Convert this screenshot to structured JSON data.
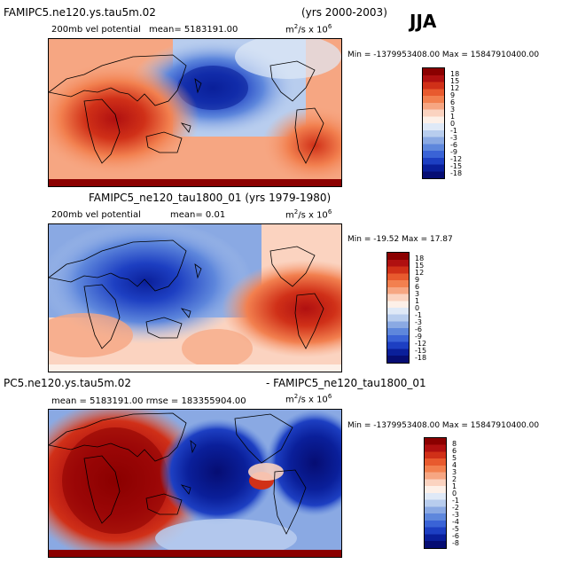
{
  "season": "JJA",
  "panels": [
    {
      "case_title": "FAMIPC5.ne120.ys.tau5m.02",
      "years": "(yrs 2000-2003)",
      "variable": "200mb vel potential",
      "mean_text": "mean=  5183191.00",
      "units_base": "m",
      "units_sup1": "2",
      "units_mid": "/s x 10",
      "units_sup2": "6",
      "minmax": "Min = -1379953408.00 Max = 15847910400.00",
      "levels": [
        "18",
        "15",
        "12",
        "9",
        "6",
        "3",
        "1",
        "0",
        "-1",
        "-3",
        "-6",
        "-9",
        "-12",
        "-15",
        "-18"
      ]
    },
    {
      "case_title": "FAMIPC5_ne120_tau1800_01 (yrs 1979-1980)",
      "variable": "200mb vel potential",
      "mean_text": "mean=   0.01",
      "units_base": "m",
      "units_sup1": "2",
      "units_mid": "/s x 10",
      "units_sup2": "6",
      "minmax": "Min = -19.52 Max =  17.87",
      "levels": [
        "18",
        "15",
        "12",
        "9",
        "6",
        "3",
        "1",
        "0",
        "-1",
        "-3",
        "-6",
        "-9",
        "-12",
        "-15",
        "-18"
      ]
    },
    {
      "case_title_left": "PC5.ne120.ys.tau5m.02",
      "case_title_right": "- FAMIPC5_ne120_tau1800_01",
      "mean_text": "mean =  5183191.00 rmse =  183355904.00",
      "units_base": "m",
      "units_sup1": "2",
      "units_mid": "/s x 10",
      "units_sup2": "6",
      "minmax": "Min = -1379953408.00 Max = 15847910400.00",
      "levels": [
        "8",
        "6",
        "5",
        "4",
        "3",
        "2",
        "1",
        "0",
        "-1",
        "-2",
        "-3",
        "-4",
        "-5",
        "-6",
        "-8"
      ]
    }
  ],
  "colors": {
    "scale": [
      "#8b0000",
      "#b01010",
      "#d03018",
      "#e85a2e",
      "#f2804f",
      "#f6a682",
      "#fbd3c0",
      "#fdf0e8",
      "#dfe9f7",
      "#b8cdee",
      "#8aa9e3",
      "#5e87dc",
      "#3a63d6",
      "#1d3fc2",
      "#0a1f9a",
      "#060d73"
    ]
  }
}
